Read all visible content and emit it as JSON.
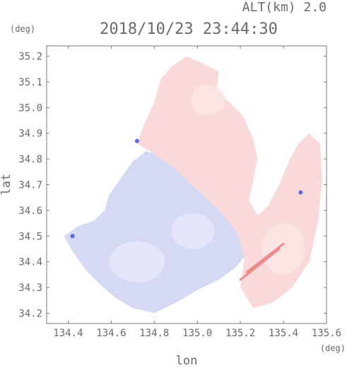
{
  "header": {
    "alt_label": "ALT(km) 2.0",
    "timestamp": "2018/10/23 23:44:30"
  },
  "chart_data": {
    "type": "heatmap",
    "title": "2018/10/23 23:44:30",
    "subtitle": "ALT(km) 2.0",
    "xlabel": "lon",
    "ylabel": "lat",
    "x_unit": "(deg)",
    "y_unit": "(deg)",
    "xlim": [
      134.3,
      135.6
    ],
    "ylim": [
      34.16,
      35.24
    ],
    "x_ticks": [
      "134.4",
      "134.6",
      "134.8",
      "135.0",
      "135.2",
      "135.4",
      "135.6"
    ],
    "y_ticks": [
      "34.2",
      "34.3",
      "34.4",
      "34.5",
      "34.6",
      "34.7",
      "34.8",
      "34.9",
      "35.0",
      "35.1",
      "35.2"
    ],
    "colors": {
      "negative": "#d6d9f4",
      "negative_light": "#e9eaf9",
      "positive": "#f9d9d9",
      "positive_light": "#fbe8e8",
      "strong_positive": "#ee8a8a",
      "strong_negative": "#5a6ad8",
      "frame": "#7a7a7a"
    },
    "regions": [
      {
        "name": "south-west negative velocity",
        "sign": "negative",
        "polygon": [
          [
            134.38,
            34.5
          ],
          [
            134.45,
            34.54
          ],
          [
            134.52,
            34.56
          ],
          [
            134.57,
            34.6
          ],
          [
            134.59,
            34.66
          ],
          [
            134.64,
            34.72
          ],
          [
            134.7,
            34.79
          ],
          [
            134.76,
            34.83
          ],
          [
            134.86,
            34.81
          ],
          [
            134.95,
            34.76
          ],
          [
            135.04,
            34.7
          ],
          [
            135.12,
            34.64
          ],
          [
            135.2,
            34.58
          ],
          [
            135.24,
            34.52
          ],
          [
            135.24,
            34.44
          ],
          [
            135.18,
            34.38
          ],
          [
            135.1,
            34.33
          ],
          [
            135.0,
            34.29
          ],
          [
            134.92,
            34.25
          ],
          [
            134.85,
            34.22
          ],
          [
            134.8,
            34.2
          ],
          [
            134.7,
            34.22
          ],
          [
            134.62,
            34.26
          ],
          [
            134.55,
            34.31
          ],
          [
            134.48,
            34.37
          ],
          [
            134.42,
            34.44
          ]
        ]
      },
      {
        "name": "north-east positive velocity",
        "sign": "positive",
        "polygon": [
          [
            134.72,
            34.86
          ],
          [
            134.75,
            34.93
          ],
          [
            134.8,
            35.02
          ],
          [
            134.83,
            35.11
          ],
          [
            134.88,
            35.16
          ],
          [
            134.95,
            35.2
          ],
          [
            135.03,
            35.17
          ],
          [
            135.1,
            35.14
          ],
          [
            135.09,
            35.07
          ],
          [
            135.15,
            35.02
          ],
          [
            135.21,
            34.97
          ],
          [
            135.26,
            34.88
          ],
          [
            135.28,
            34.8
          ],
          [
            135.26,
            34.72
          ],
          [
            135.24,
            34.64
          ],
          [
            135.28,
            34.58
          ],
          [
            135.33,
            34.62
          ],
          [
            135.38,
            34.7
          ],
          [
            135.43,
            34.8
          ],
          [
            135.47,
            34.86
          ],
          [
            135.52,
            34.9
          ],
          [
            135.57,
            34.86
          ],
          [
            135.58,
            34.72
          ],
          [
            135.56,
            34.55
          ],
          [
            135.52,
            34.4
          ],
          [
            135.44,
            34.3
          ],
          [
            135.35,
            34.24
          ],
          [
            135.26,
            34.22
          ],
          [
            135.2,
            34.3
          ],
          [
            135.22,
            34.42
          ],
          [
            135.18,
            34.52
          ],
          [
            135.1,
            34.6
          ],
          [
            135.0,
            34.68
          ],
          [
            134.9,
            34.76
          ],
          [
            134.8,
            34.82
          ]
        ]
      }
    ]
  }
}
